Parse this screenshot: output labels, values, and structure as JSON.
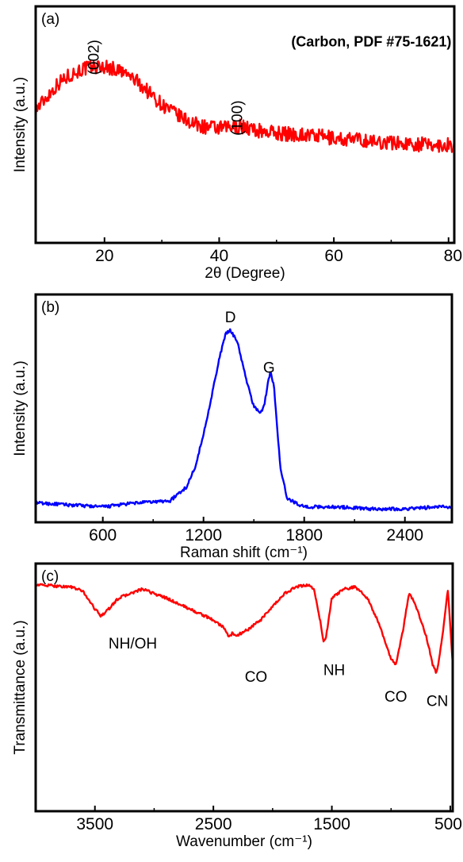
{
  "chart_data": [
    {
      "type": "line",
      "panel_label": "(a)",
      "xlabel": "2θ (Degree)",
      "ylabel": "Intensity (a.u.)",
      "xlim": [
        8,
        81
      ],
      "ylim": [
        0,
        1
      ],
      "x_ticks": [
        20,
        40,
        60,
        80
      ],
      "x_tick_labels": [
        "20",
        "40",
        "60",
        "80"
      ],
      "y_ticks_shown": false,
      "grid": false,
      "annotations": [
        {
          "text": "(Carbon, PDF #75-1621)",
          "x": 80.5,
          "y": 0.93,
          "bold": true,
          "anchor": "end"
        },
        {
          "text": "(002)",
          "x": 19,
          "y": 0.85,
          "rotate": -90
        },
        {
          "text": "(100)",
          "x": 44,
          "y": 0.4,
          "rotate": -90
        }
      ],
      "series": [
        {
          "color": "#ff0000",
          "noise": 0.055,
          "x": [
            8,
            10,
            12,
            14,
            16,
            18,
            20,
            22,
            24,
            26,
            28,
            30,
            32,
            34,
            36,
            38,
            40,
            42,
            44,
            46,
            48,
            50,
            52,
            54,
            56,
            58,
            60,
            62,
            64,
            66,
            68,
            70,
            72,
            74,
            76,
            78,
            80,
            81
          ],
          "values": [
            0.46,
            0.56,
            0.66,
            0.72,
            0.76,
            0.78,
            0.78,
            0.76,
            0.72,
            0.66,
            0.58,
            0.5,
            0.44,
            0.39,
            0.35,
            0.33,
            0.32,
            0.33,
            0.34,
            0.31,
            0.3,
            0.29,
            0.28,
            0.28,
            0.27,
            0.26,
            0.25,
            0.24,
            0.24,
            0.23,
            0.22,
            0.22,
            0.21,
            0.21,
            0.2,
            0.2,
            0.2,
            0.2
          ]
        }
      ]
    },
    {
      "type": "line",
      "panel_label": "(b)",
      "xlabel": "Raman shift (cm⁻¹)",
      "ylabel": "Intensity (a.u.)",
      "xlim": [
        200,
        2680
      ],
      "ylim": [
        0,
        1
      ],
      "x_ticks": [
        600,
        1200,
        1800,
        2400
      ],
      "x_tick_labels": [
        "600",
        "1200",
        "1800",
        "2400"
      ],
      "y_ticks_shown": false,
      "grid": false,
      "annotations": [
        {
          "text": "D",
          "x": 1360,
          "y": 0.94
        },
        {
          "text": "G",
          "x": 1590,
          "y": 0.69
        }
      ],
      "series": [
        {
          "color": "#0000ff",
          "noise": 0.008,
          "x": [
            200,
            400,
            600,
            700,
            800,
            1000,
            1100,
            1150,
            1200,
            1250,
            1300,
            1330,
            1360,
            1400,
            1450,
            1500,
            1540,
            1560,
            1580,
            1600,
            1620,
            1640,
            1660,
            1700,
            1800,
            2000,
            2200,
            2400,
            2600,
            2680
          ],
          "values": [
            0.04,
            0.03,
            0.02,
            0.03,
            0.04,
            0.05,
            0.12,
            0.22,
            0.38,
            0.58,
            0.78,
            0.88,
            0.9,
            0.85,
            0.67,
            0.52,
            0.49,
            0.52,
            0.62,
            0.7,
            0.62,
            0.4,
            0.2,
            0.06,
            0.02,
            0.02,
            0.01,
            0.01,
            0.02,
            0.02
          ]
        }
      ]
    },
    {
      "type": "line",
      "panel_label": "(c)",
      "xlabel": "Wavenumber (cm⁻¹)",
      "ylabel": "Transmittance (a.u.)",
      "xlim": [
        4000,
        480
      ],
      "ylim": [
        0,
        1
      ],
      "x_ticks": [
        3500,
        2500,
        1500,
        500
      ],
      "x_tick_labels": [
        "3500",
        "2500",
        "1500",
        "500"
      ],
      "y_ticks_shown": false,
      "grid": false,
      "annotations": [
        {
          "text": "NH/OH",
          "x": 3180,
          "y": 0.67
        },
        {
          "text": "CO",
          "x": 2140,
          "y": 0.52
        },
        {
          "text": "NH",
          "x": 1480,
          "y": 0.55
        },
        {
          "text": "CO",
          "x": 960,
          "y": 0.43
        },
        {
          "text": "CN",
          "x": 610,
          "y": 0.41
        }
      ],
      "series": [
        {
          "color": "#ff0000",
          "noise": 0.006,
          "x": [
            4000,
            3700,
            3600,
            3500,
            3450,
            3400,
            3300,
            3100,
            2900,
            2700,
            2500,
            2400,
            2370,
            2340,
            2300,
            2200,
            2100,
            2000,
            1900,
            1800,
            1700,
            1650,
            1600,
            1570,
            1550,
            1500,
            1400,
            1300,
            1200,
            1100,
            1000,
            960,
            900,
            850,
            800,
            700,
            650,
            620,
            600,
            550,
            520,
            480
          ],
          "values": [
            0.96,
            0.95,
            0.93,
            0.85,
            0.82,
            0.84,
            0.9,
            0.94,
            0.9,
            0.85,
            0.8,
            0.76,
            0.72,
            0.74,
            0.73,
            0.76,
            0.8,
            0.86,
            0.92,
            0.95,
            0.96,
            0.94,
            0.8,
            0.7,
            0.72,
            0.9,
            0.94,
            0.95,
            0.9,
            0.78,
            0.62,
            0.6,
            0.75,
            0.92,
            0.88,
            0.72,
            0.6,
            0.56,
            0.6,
            0.8,
            0.94,
            0.6
          ]
        }
      ]
    }
  ]
}
